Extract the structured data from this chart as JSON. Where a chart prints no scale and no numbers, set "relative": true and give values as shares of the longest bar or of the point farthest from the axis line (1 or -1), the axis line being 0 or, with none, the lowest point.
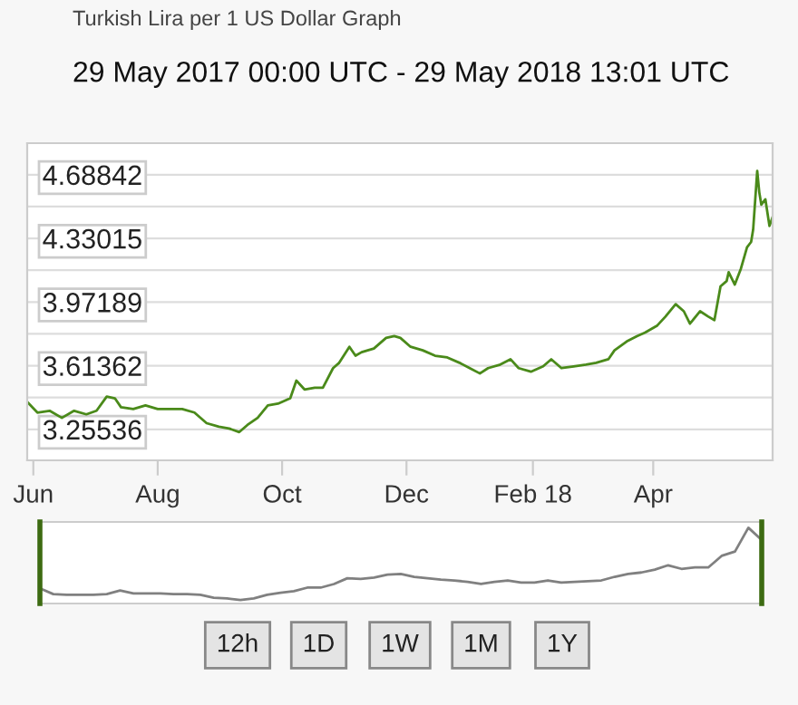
{
  "chart_data": [
    {
      "type": "line",
      "title": "Turkish Lira per 1 US Dollar Graph",
      "subtitle": "29 May 2017 00:00 UTC - 29 May 2018 13:01 UTC",
      "x": [
        "2017-05-29",
        "2017-06-03",
        "2017-06-09",
        "2017-06-15",
        "2017-06-21",
        "2017-06-27",
        "2017-07-02",
        "2017-07-07",
        "2017-07-11",
        "2017-07-14",
        "2017-07-20",
        "2017-07-26",
        "2017-08-01",
        "2017-08-07",
        "2017-08-13",
        "2017-08-19",
        "2017-08-25",
        "2017-08-31",
        "2017-09-05",
        "2017-09-10",
        "2017-09-14",
        "2017-09-19",
        "2017-09-24",
        "2017-09-29",
        "2017-10-05",
        "2017-10-08",
        "2017-10-12",
        "2017-10-17",
        "2017-10-21",
        "2017-10-26",
        "2017-10-29",
        "2017-11-03",
        "2017-11-06",
        "2017-11-09",
        "2017-11-15",
        "2017-11-21",
        "2017-11-25",
        "2017-11-28",
        "2017-12-03",
        "2017-12-09",
        "2017-12-15",
        "2017-12-21",
        "2017-12-27",
        "2018-01-01",
        "2018-01-06",
        "2018-01-10",
        "2018-01-16",
        "2018-01-21",
        "2018-01-25",
        "2018-01-31",
        "2018-02-06",
        "2018-02-10",
        "2018-02-15",
        "2018-02-21",
        "2018-02-27",
        "2018-03-04",
        "2018-03-10",
        "2018-03-13",
        "2018-03-19",
        "2018-03-24",
        "2018-03-28",
        "2018-04-03",
        "2018-04-07",
        "2018-04-12",
        "2018-04-16",
        "2018-04-19",
        "2018-04-24",
        "2018-04-28",
        "2018-05-01",
        "2018-05-04",
        "2018-05-07",
        "2018-05-08",
        "2018-05-11",
        "2018-05-14",
        "2018-05-17",
        "2018-05-19",
        "2018-05-20",
        "2018-05-22",
        "2018-05-23",
        "2018-05-24",
        "2018-05-26",
        "2018-05-28",
        "2018-05-29T13:00"
      ],
      "series": [
        {
          "color": "#4a8a1a",
          "values": [
            3.41,
            3.35,
            3.36,
            3.32,
            3.36,
            3.34,
            3.36,
            3.44,
            3.43,
            3.38,
            3.37,
            3.39,
            3.37,
            3.37,
            3.37,
            3.35,
            3.29,
            3.27,
            3.26,
            3.24,
            3.28,
            3.32,
            3.39,
            3.4,
            3.43,
            3.53,
            3.48,
            3.49,
            3.49,
            3.6,
            3.63,
            3.72,
            3.67,
            3.69,
            3.71,
            3.77,
            3.78,
            3.77,
            3.72,
            3.7,
            3.67,
            3.66,
            3.63,
            3.6,
            3.57,
            3.6,
            3.62,
            3.65,
            3.6,
            3.58,
            3.61,
            3.65,
            3.6,
            3.61,
            3.62,
            3.63,
            3.65,
            3.7,
            3.75,
            3.78,
            3.8,
            3.84,
            3.89,
            3.96,
            3.92,
            3.85,
            3.92,
            3.89,
            3.87,
            4.06,
            4.09,
            4.14,
            4.07,
            4.16,
            4.28,
            4.31,
            4.38,
            4.71,
            4.59,
            4.52,
            4.55,
            4.4,
            4.45
          ]
        }
      ],
      "xlim": [
        "2017-05-29T00:00",
        "2018-05-29T13:01"
      ],
      "xticks": [
        {
          "value": "2017-06-01",
          "label": "Jun"
        },
        {
          "value": "2017-08-01",
          "label": "Aug"
        },
        {
          "value": "2017-10-01",
          "label": "Oct"
        },
        {
          "value": "2017-12-01",
          "label": "Dec"
        },
        {
          "value": "2018-02-01",
          "label": "Feb 18"
        },
        {
          "value": "2018-04-01",
          "label": "Apr"
        }
      ],
      "ylim": [
        3.081,
        4.866
      ],
      "yticks": [
        3.25536,
        {
          "value": 3.43449,
          "label": null
        },
        3.61362,
        {
          "value": 3.79276,
          "label": null
        },
        3.97189,
        {
          "value": 4.15102,
          "label": null
        },
        4.33015,
        {
          "value": 4.50929,
          "label": null
        },
        4.68842
      ],
      "grid": "y",
      "marker": "none",
      "line_style": "solid"
    },
    {
      "type": "line",
      "relative": true,
      "categories": [
        null,
        null,
        null,
        null,
        null,
        null,
        null,
        null,
        null,
        null,
        null,
        null,
        null,
        null,
        null,
        null,
        null,
        null,
        null,
        null,
        null,
        null,
        null,
        null,
        null,
        null,
        null,
        null,
        null,
        null,
        null,
        null,
        null,
        null,
        null,
        null,
        null,
        null,
        null,
        null,
        null,
        null,
        null,
        null,
        null,
        null,
        null,
        null,
        null,
        null,
        null,
        null,
        null,
        null,
        null
      ],
      "series": [
        {
          "color": "#808080",
          "values": [
            0.16,
            0.08,
            0.07,
            0.07,
            0.07,
            0.08,
            0.13,
            0.09,
            0.09,
            0.09,
            0.08,
            0.08,
            0.07,
            0.03,
            0.02,
            0,
            0.02,
            0.07,
            0.1,
            0.12,
            0.17,
            0.17,
            0.22,
            0.3,
            0.29,
            0.31,
            0.35,
            0.36,
            0.32,
            0.3,
            0.28,
            0.27,
            0.25,
            0.22,
            0.25,
            0.27,
            0.24,
            0.24,
            0.27,
            0.24,
            0.25,
            0.26,
            0.27,
            0.32,
            0.36,
            0.38,
            0.42,
            0.48,
            0.43,
            0.45,
            0.45,
            0.61,
            0.67,
            1,
            0.83
          ]
        }
      ],
      "annotations": [
        "12h",
        "1D",
        "1W",
        "1M",
        "1Y"
      ]
    }
  ]
}
